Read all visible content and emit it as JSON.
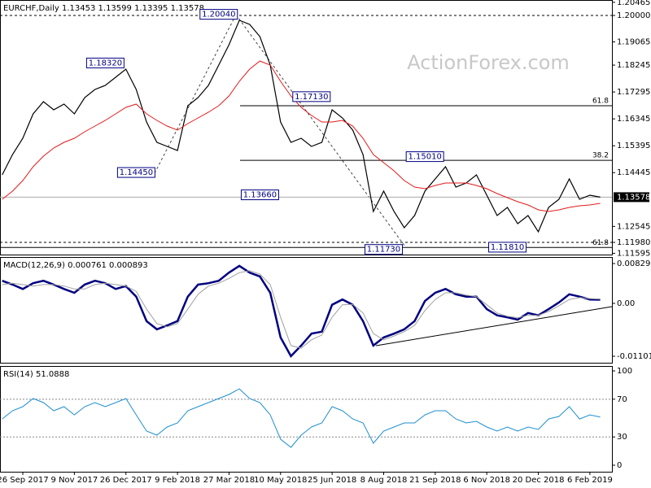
{
  "chart_data": [
    {
      "type": "line",
      "title": "EURCHF,Daily  1.13453 1.13599 1.13395 1.13578",
      "watermark": "ActionForex.com",
      "categories": [
        null,
        null,
        "26 Sep 2017",
        null,
        null,
        null,
        null,
        "9 Nov 2017",
        null,
        null,
        null,
        null,
        "26 Dec 2017",
        null,
        null,
        null,
        null,
        "9 Feb 2018",
        null,
        null,
        null,
        null,
        "27 Mar 2018",
        null,
        null,
        null,
        null,
        "10 May 2018",
        null,
        null,
        null,
        null,
        "25 Jun 2018",
        null,
        null,
        null,
        null,
        "8 Aug 2018",
        null,
        null,
        null,
        null,
        "21 Sep 2018",
        null,
        null,
        null,
        null,
        "6 Nov 2018",
        null,
        null,
        null,
        null,
        "20 Dec 2018",
        null,
        null,
        null,
        null,
        "6 Feb 2019",
        null
      ],
      "series": [
        {
          "color": "#000000",
          "values": [
            1.14366,
            1.15085,
            1.1566,
            1.16522,
            1.16953,
            1.16666,
            1.16867,
            1.16522,
            1.17097,
            1.17384,
            1.17528,
            1.17815,
            1.18103,
            1.17384,
            1.16235,
            1.15516,
            1.15372,
            1.15228,
            1.16809,
            1.17097,
            1.17528,
            1.18247,
            1.18965,
            1.19828,
            1.19684,
            1.19253,
            1.18247,
            1.16235,
            1.15516,
            1.1566,
            1.15372,
            1.15516,
            1.16666,
            1.16378,
            1.15947,
            1.15085,
            1.13073,
            1.13791,
            1.13073,
            1.12498,
            1.12929,
            1.13791,
            1.14222,
            1.14654,
            1.13935,
            1.14079,
            1.14366,
            1.13648,
            1.12929,
            1.13216,
            1.12642,
            1.12929,
            1.12354,
            1.13216,
            1.13504,
            1.14222,
            1.13504,
            1.13648,
            1.13578
          ]
        },
        {
          "color": "#e31a1c",
          "values": [
            1.13504,
            1.13791,
            1.14165,
            1.14654,
            1.15027,
            1.15315,
            1.15516,
            1.1566,
            1.1589,
            1.16091,
            1.16292,
            1.16522,
            1.16752,
            1.16867,
            1.16522,
            1.16292,
            1.16091,
            1.15947,
            1.16177,
            1.16378,
            1.16579,
            1.16809,
            1.17154,
            1.17672,
            1.18103,
            1.1839,
            1.18247,
            1.17672,
            1.17154,
            1.16752,
            1.16464,
            1.16235,
            1.16235,
            1.16292,
            1.16091,
            1.1566,
            1.15085,
            1.14797,
            1.1451,
            1.14165,
            1.13935,
            1.13878,
            1.13993,
            1.14079,
            1.14079,
            1.14079,
            1.13993,
            1.13878,
            1.13705,
            1.13561,
            1.13418,
            1.13303,
            1.1313,
            1.13073,
            1.1313,
            1.13216,
            1.13274,
            1.13303,
            1.1336
          ]
        }
      ],
      "ylim": [
        1.11549,
        1.20546
      ],
      "yticks": [
        1.20465,
        {
          "value": 1.2,
          "label": "1.20000"
        },
        1.19065,
        1.18245,
        1.17295,
        1.16345,
        1.15395,
        1.14445,
        1.12545,
        {
          "value": 1.1198,
          "label": "1.11980"
        },
        1.11595
      ],
      "last_price": 1.13578,
      "annotations": [
        {
          "label": "1.20040",
          "value": 1.2004,
          "x": 21
        },
        {
          "label": "1.18320",
          "value": 1.1832,
          "x": 10
        },
        {
          "label": "1.14450",
          "value": 1.1445,
          "x": 13
        },
        {
          "label": "1.17130",
          "value": 1.1713,
          "x": 30
        },
        {
          "label": "1.13660",
          "value": 1.1366,
          "x": 25
        },
        {
          "label": "1.15010",
          "value": 1.1501,
          "x": 41
        },
        {
          "label": "1.11730",
          "value": 1.1173,
          "x": 37
        },
        {
          "label": "1.11810",
          "value": 1.1181,
          "x": 49
        }
      ],
      "levels": [
        {
          "label": "61.8",
          "value": 1.1681
        },
        {
          "label": "38.2",
          "value": 1.1488
        },
        {
          "label": "61.8",
          "value": 1.118
        }
      ]
    },
    {
      "type": "line",
      "title": "MACD(12,26,9) 0.000761 0.000893",
      "series": [
        {
          "color": "#000080",
          "values": [
            0.0047,
            0.0039,
            0.003,
            0.0042,
            0.0047,
            0.0039,
            0.003,
            0.0022,
            0.0039,
            0.0047,
            0.0042,
            0.003,
            0.0036,
            0.0014,
            -0.0037,
            -0.0054,
            -0.0046,
            -0.0037,
            0.0014,
            0.0039,
            0.0042,
            0.0047,
            0.0064,
            0.0078,
            0.0064,
            0.0056,
            0.0022,
            -0.0071,
            -0.011,
            -0.0088,
            -0.0063,
            -0.0059,
            -0.0003,
            0.0008,
            -0.0003,
            -0.0037,
            -0.0088,
            -0.0071,
            -0.0063,
            -0.0054,
            -0.0037,
            0.0005,
            0.0022,
            0.003,
            0.0019,
            0.0014,
            0.0014,
            -0.0012,
            -0.0025,
            -0.0029,
            -0.0034,
            -0.002,
            -0.0025,
            -0.0012,
            0.0002,
            0.0019,
            0.0014,
            0.0008,
            0.000761
          ]
        },
        {
          "color": "#a0a0a0",
          "values": [
            0.0039,
            0.0042,
            0.0039,
            0.0036,
            0.0039,
            0.0039,
            0.0036,
            0.003,
            0.003,
            0.0039,
            0.0042,
            0.0039,
            0.0036,
            0.0025,
            -0.0012,
            -0.0042,
            -0.0049,
            -0.0042,
            -0.0012,
            0.0019,
            0.0036,
            0.0042,
            0.0052,
            0.0064,
            0.0068,
            0.0061,
            0.0039,
            -0.0029,
            -0.0088,
            -0.0093,
            -0.0076,
            -0.0066,
            -0.0029,
            -0.0003,
            -0.0002,
            -0.002,
            -0.0063,
            -0.0076,
            -0.0068,
            -0.0059,
            -0.0046,
            -0.0015,
            0.0008,
            0.0022,
            0.0022,
            0.0017,
            0.0014,
            -0.0003,
            -0.002,
            -0.0027,
            -0.003,
            -0.0025,
            -0.0025,
            -0.0017,
            -0.0005,
            0.0008,
            0.0012,
            0.001,
            0.000893
          ]
        }
      ],
      "ylim": [
        -0.01237,
        0.00965
      ],
      "yticks": [
        0.008292,
        {
          "value": 0,
          "label": "0.00"
        },
        -0.011015
      ]
    },
    {
      "type": "line",
      "title": "RSI(14) 51.0888",
      "series": [
        {
          "color": "#1f8fd0",
          "values": [
            49.1,
            57.8,
            62.1,
            70.7,
            66.4,
            57.8,
            62.1,
            53.4,
            62.1,
            66.4,
            62.1,
            66.4,
            70.7,
            53.4,
            36.2,
            31.9,
            40.5,
            44.8,
            57.8,
            62.1,
            66.4,
            70.7,
            75,
            81,
            70.7,
            66.4,
            53.4,
            27.6,
            19,
            31.9,
            40.5,
            44.8,
            62.1,
            57.8,
            49.1,
            44.8,
            23.3,
            36.2,
            40.5,
            44.8,
            44.8,
            53.4,
            57.8,
            57.8,
            49.1,
            44.8,
            46.6,
            40.5,
            36.2,
            40.5,
            36.2,
            40.5,
            37.9,
            49.1,
            51.7,
            62.1,
            49.1,
            53.4,
            51.0888
          ]
        }
      ],
      "ylim": [
        -6.9,
        105.2
      ],
      "yticks": [
        100,
        70,
        30,
        0
      ],
      "levels": [
        70,
        30
      ]
    }
  ]
}
